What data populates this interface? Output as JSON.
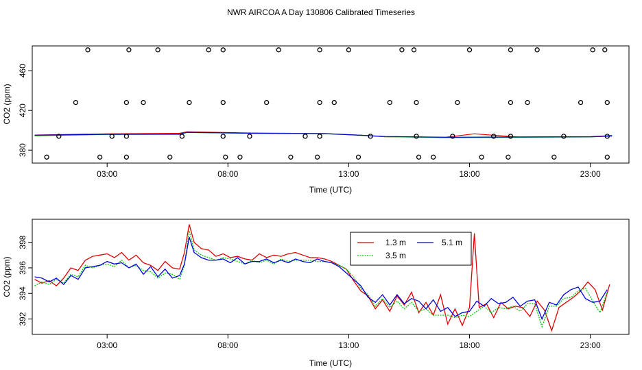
{
  "title": "NWR AIRCOA A  Day 130806  Calibrated Timeseries",
  "colors": {
    "series_1_3": "#e00000",
    "series_3_5": "#00cc00",
    "series_5_1": "#0000dd",
    "axis": "#000000"
  },
  "chart_data": [
    {
      "type": "scatter",
      "xlabel": "Time (UTC)",
      "ylabel": "CO2 (ppm)",
      "xticks": [
        3,
        8,
        13,
        18,
        23
      ],
      "xtick_labels": [
        "03:00",
        "08:00",
        "13:00",
        "18:00",
        "23:00"
      ],
      "yticks": [
        380,
        420,
        460
      ],
      "ytick_labels": [
        "380",
        "420",
        "460"
      ],
      "xlim": [
        -0.1,
        24.6
      ],
      "ylim": [
        367,
        485
      ],
      "grid": false,
      "points": {
        "top": [
          2.2,
          3.9,
          5.1,
          7.2,
          7.8,
          10.1,
          11.8,
          13.0,
          15.2,
          15.7,
          18.0,
          19.7,
          20.8,
          23.1,
          23.6
        ],
        "y_top": 481,
        "upper_mid": [
          1.7,
          3.8,
          4.5,
          6.4,
          7.8,
          9.6,
          11.8,
          12.4,
          14.7,
          15.8,
          17.5,
          19.7,
          20.4,
          22.6,
          23.7
        ],
        "y_upper_mid": 428,
        "mid": [
          1.0,
          3.2,
          3.8,
          6.1,
          7.8,
          8.9,
          11.2,
          11.8,
          13.9,
          15.8,
          17.3,
          19.0,
          19.7,
          21.9,
          23.7
        ],
        "y_mid": 394,
        "bottom": [
          0.5,
          2.7,
          3.8,
          5.6,
          7.9,
          8.5,
          10.6,
          11.7,
          13.4,
          15.9,
          16.5,
          18.5,
          19.6,
          21.5,
          23.7
        ],
        "y_bottom": 373
      },
      "lines": [
        {
          "x": [
            0.0,
            3.0,
            6.0,
            6.3,
            9.0,
            12.0,
            13.5,
            14.5,
            17.0,
            18.2,
            20.0,
            23.0,
            23.9
          ],
          "y": [
            395.2,
            396.5,
            397.0,
            398.5,
            397.3,
            396.8,
            395.0,
            393.5,
            393.0,
            396.5,
            393.2,
            393.5,
            394.8
          ],
          "color": "#e00000"
        },
        {
          "x": [
            0.0,
            3.0,
            6.0,
            6.3,
            9.0,
            12.0,
            13.5,
            14.5,
            17.0,
            20.0,
            23.0,
            23.9
          ],
          "y": [
            394.6,
            395.8,
            396.1,
            397.8,
            397.0,
            396.7,
            395.0,
            393.6,
            392.6,
            392.9,
            393.3,
            394.2
          ],
          "color": "#00cc00"
        },
        {
          "x": [
            0.0,
            3.0,
            6.0,
            6.3,
            9.0,
            12.0,
            13.5,
            14.5,
            17.0,
            20.0,
            23.0,
            23.9
          ],
          "y": [
            395.0,
            396.0,
            396.0,
            398.0,
            397.0,
            396.6,
            395.0,
            393.8,
            393.0,
            393.3,
            393.5,
            394.3
          ],
          "color": "#0000dd"
        }
      ]
    },
    {
      "type": "line",
      "xlabel": "Time (UTC)",
      "ylabel": "CO2 (ppm)",
      "xticks": [
        3,
        8,
        13,
        18,
        23
      ],
      "xtick_labels": [
        "03:00",
        "08:00",
        "13:00",
        "18:00",
        "23:00"
      ],
      "yticks": [
        392,
        394,
        396,
        398
      ],
      "ytick_labels": [
        "392",
        "394",
        "396",
        "398"
      ],
      "xlim": [
        -0.1,
        24.6
      ],
      "ylim": [
        390.8,
        399.8
      ],
      "grid": false,
      "legend_position": "top-center-right",
      "series": [
        {
          "name": "1.3 m",
          "color": "#e00000",
          "x": [
            0.0,
            0.3,
            0.6,
            0.9,
            1.2,
            1.5,
            1.8,
            2.1,
            2.4,
            2.7,
            3.0,
            3.3,
            3.6,
            3.9,
            4.2,
            4.5,
            4.8,
            5.1,
            5.4,
            5.7,
            6.0,
            6.2,
            6.4,
            6.6,
            6.9,
            7.2,
            7.5,
            7.8,
            8.1,
            8.4,
            8.7,
            9.0,
            9.3,
            9.6,
            9.9,
            10.2,
            10.5,
            10.8,
            11.1,
            11.4,
            11.7,
            12.0,
            12.3,
            12.6,
            12.9,
            13.2,
            13.5,
            13.8,
            14.1,
            14.4,
            14.7,
            15.0,
            15.3,
            15.6,
            15.9,
            16.2,
            16.5,
            16.8,
            17.1,
            17.4,
            17.7,
            18.0,
            18.2,
            18.4,
            18.7,
            19.0,
            19.3,
            19.6,
            19.9,
            20.2,
            20.5,
            20.8,
            21.1,
            21.4,
            21.7,
            22.0,
            22.3,
            22.6,
            22.9,
            23.2,
            23.5,
            23.8
          ],
          "y": [
            395.1,
            394.8,
            395.0,
            394.6,
            395.2,
            396.0,
            395.8,
            396.6,
            396.9,
            397.0,
            397.1,
            396.8,
            397.2,
            396.6,
            397.0,
            396.4,
            396.2,
            395.8,
            396.5,
            396.0,
            395.9,
            397.2,
            399.4,
            398.0,
            397.5,
            397.4,
            396.9,
            397.1,
            396.8,
            396.9,
            396.7,
            396.6,
            397.1,
            396.8,
            397.0,
            396.9,
            397.1,
            397.2,
            397.0,
            396.8,
            396.8,
            396.7,
            396.5,
            396.2,
            395.9,
            395.0,
            394.2,
            393.8,
            392.8,
            393.5,
            392.6,
            393.8,
            393.1,
            394.1,
            392.5,
            393.3,
            392.3,
            393.9,
            391.6,
            392.8,
            391.5,
            392.9,
            398.7,
            392.9,
            393.2,
            392.1,
            393.3,
            392.8,
            393.0,
            392.9,
            392.2,
            393.4,
            392.7,
            391.1,
            392.9,
            393.3,
            393.7,
            394.2,
            394.9,
            394.3,
            392.7,
            394.7
          ]
        },
        {
          "name": "3.5 m",
          "color": "#00cc00",
          "x": [
            0.0,
            0.3,
            0.6,
            0.9,
            1.2,
            1.5,
            1.8,
            2.1,
            2.4,
            2.7,
            3.0,
            3.3,
            3.6,
            3.9,
            4.2,
            4.5,
            4.8,
            5.1,
            5.4,
            5.7,
            6.0,
            6.2,
            6.4,
            6.6,
            6.9,
            7.2,
            7.5,
            7.8,
            8.1,
            8.4,
            8.7,
            9.0,
            9.3,
            9.6,
            9.9,
            10.2,
            10.5,
            10.8,
            11.1,
            11.4,
            11.7,
            12.0,
            12.3,
            12.6,
            12.9,
            13.2,
            13.5,
            13.8,
            14.1,
            14.4,
            14.7,
            15.0,
            15.3,
            15.6,
            15.9,
            16.2,
            16.5,
            16.8,
            17.1,
            17.4,
            17.7,
            18.0,
            18.3,
            18.6,
            18.9,
            19.2,
            19.5,
            19.8,
            20.1,
            20.4,
            20.7,
            21.0,
            21.3,
            21.6,
            21.9,
            22.2,
            22.5,
            22.8,
            23.1,
            23.4,
            23.7
          ],
          "y": [
            394.6,
            394.9,
            394.7,
            395.1,
            394.8,
            395.5,
            395.3,
            396.2,
            396.0,
            396.2,
            396.3,
            396.1,
            396.6,
            396.0,
            396.2,
            395.8,
            395.7,
            395.2,
            395.6,
            395.5,
            395.1,
            396.2,
            398.9,
            397.4,
            397.0,
            396.8,
            396.6,
            396.8,
            396.7,
            396.5,
            396.3,
            396.6,
            396.4,
            396.6,
            396.3,
            396.7,
            396.5,
            396.6,
            396.6,
            396.6,
            396.5,
            396.5,
            396.4,
            396.2,
            395.9,
            395.3,
            394.4,
            393.9,
            393.0,
            393.6,
            392.9,
            393.4,
            392.8,
            393.3,
            392.6,
            392.8,
            392.3,
            392.3,
            392.3,
            392.1,
            392.3,
            392.2,
            392.6,
            393.0,
            392.5,
            392.9,
            392.8,
            393.0,
            392.6,
            393.2,
            393.2,
            391.4,
            393.0,
            393.0,
            393.6,
            393.7,
            394.2,
            394.4,
            393.4,
            392.5,
            394.1
          ]
        },
        {
          "name": "5.1 m",
          "color": "#0000dd",
          "x": [
            0.0,
            0.3,
            0.6,
            0.9,
            1.2,
            1.5,
            1.8,
            2.1,
            2.4,
            2.7,
            3.0,
            3.3,
            3.6,
            3.9,
            4.2,
            4.5,
            4.8,
            5.1,
            5.4,
            5.7,
            6.0,
            6.2,
            6.4,
            6.6,
            6.9,
            7.2,
            7.5,
            7.8,
            8.1,
            8.4,
            8.7,
            9.0,
            9.3,
            9.6,
            9.9,
            10.2,
            10.5,
            10.8,
            11.1,
            11.4,
            11.7,
            12.0,
            12.3,
            12.6,
            12.9,
            13.2,
            13.5,
            13.8,
            14.1,
            14.4,
            14.7,
            15.0,
            15.3,
            15.6,
            15.9,
            16.2,
            16.5,
            16.8,
            17.1,
            17.4,
            17.7,
            18.0,
            18.3,
            18.6,
            18.9,
            19.2,
            19.5,
            19.8,
            20.1,
            20.4,
            20.7,
            21.0,
            21.3,
            21.6,
            21.9,
            22.2,
            22.5,
            22.8,
            23.1,
            23.4,
            23.7
          ],
          "y": [
            395.3,
            395.2,
            394.9,
            395.2,
            394.7,
            395.4,
            395.1,
            396.0,
            396.1,
            396.2,
            396.5,
            396.3,
            396.4,
            396.0,
            396.3,
            395.5,
            396.1,
            395.3,
            395.9,
            395.2,
            395.4,
            396.3,
            398.4,
            397.2,
            396.8,
            396.6,
            396.6,
            396.7,
            396.4,
            396.8,
            396.3,
            396.5,
            396.5,
            396.7,
            396.4,
            396.6,
            396.4,
            396.7,
            396.5,
            396.4,
            396.7,
            396.5,
            396.4,
            396.1,
            395.6,
            395.1,
            394.6,
            393.7,
            393.3,
            393.9,
            393.1,
            393.9,
            393.2,
            393.6,
            393.4,
            392.8,
            393.5,
            392.6,
            392.9,
            392.2,
            392.5,
            392.6,
            393.4,
            393.0,
            393.6,
            393.2,
            393.3,
            393.7,
            393.0,
            393.4,
            393.5,
            392.0,
            393.3,
            393.1,
            393.9,
            394.3,
            394.5,
            393.6,
            393.3,
            393.4,
            394.3
          ]
        }
      ]
    }
  ]
}
